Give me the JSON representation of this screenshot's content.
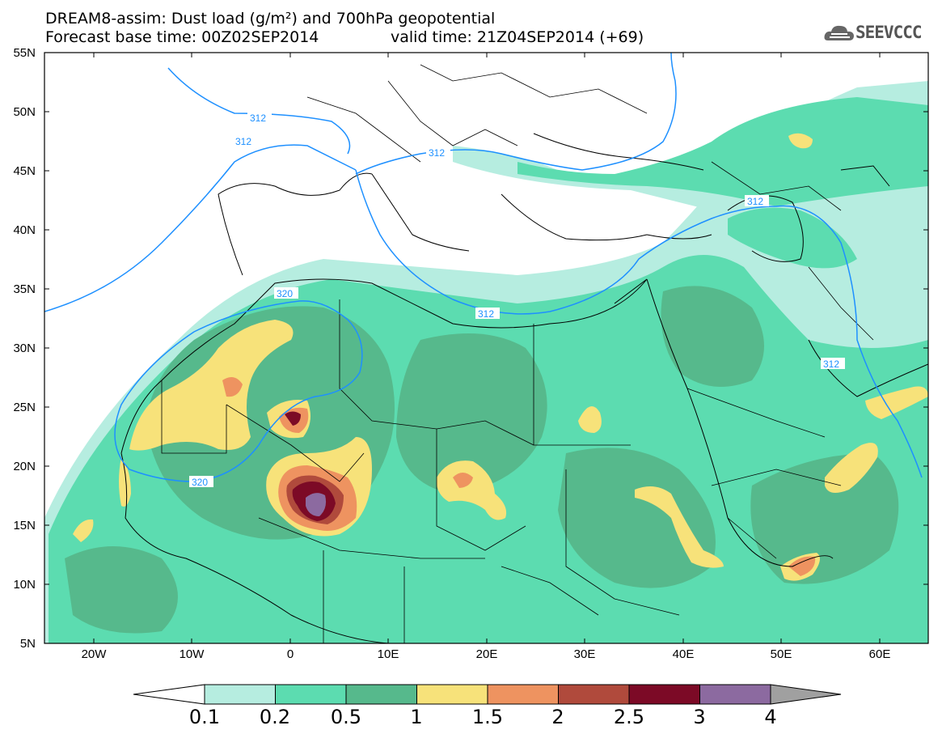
{
  "header": {
    "title": "DREAM8-assim: Dust load (g/m²) and 700hPa geopotential",
    "base_time": "Forecast base time: 00Z02SEP2014",
    "valid_time": "valid time: 21Z04SEP2014 (+69)"
  },
  "logo": {
    "name": "cloud-logo",
    "text": "SEEVCCC"
  },
  "map": {
    "lat_labels": [
      "55N",
      "50N",
      "45N",
      "40N",
      "35N",
      "30N",
      "25N",
      "20N",
      "15N",
      "10N",
      "5N"
    ],
    "lon_labels": [
      "20W",
      "10W",
      "0",
      "10E",
      "20E",
      "30E",
      "40E",
      "50E",
      "60E"
    ],
    "contour_labels": [
      "312",
      "312",
      "312",
      "312",
      "312",
      "320",
      "320",
      "312"
    ]
  },
  "colorbar": {
    "labels": [
      "0.1",
      "0.2",
      "0.5",
      "1",
      "1.5",
      "2",
      "2.5",
      "3",
      "4"
    ],
    "colors": [
      "#ffffff",
      "#b6ede0",
      "#5cdcb0",
      "#56b98c",
      "#f7e27a",
      "#ee9360",
      "#b04a3c",
      "#7c0a26",
      "#8c6aa0",
      "#a0a0a0"
    ]
  }
}
